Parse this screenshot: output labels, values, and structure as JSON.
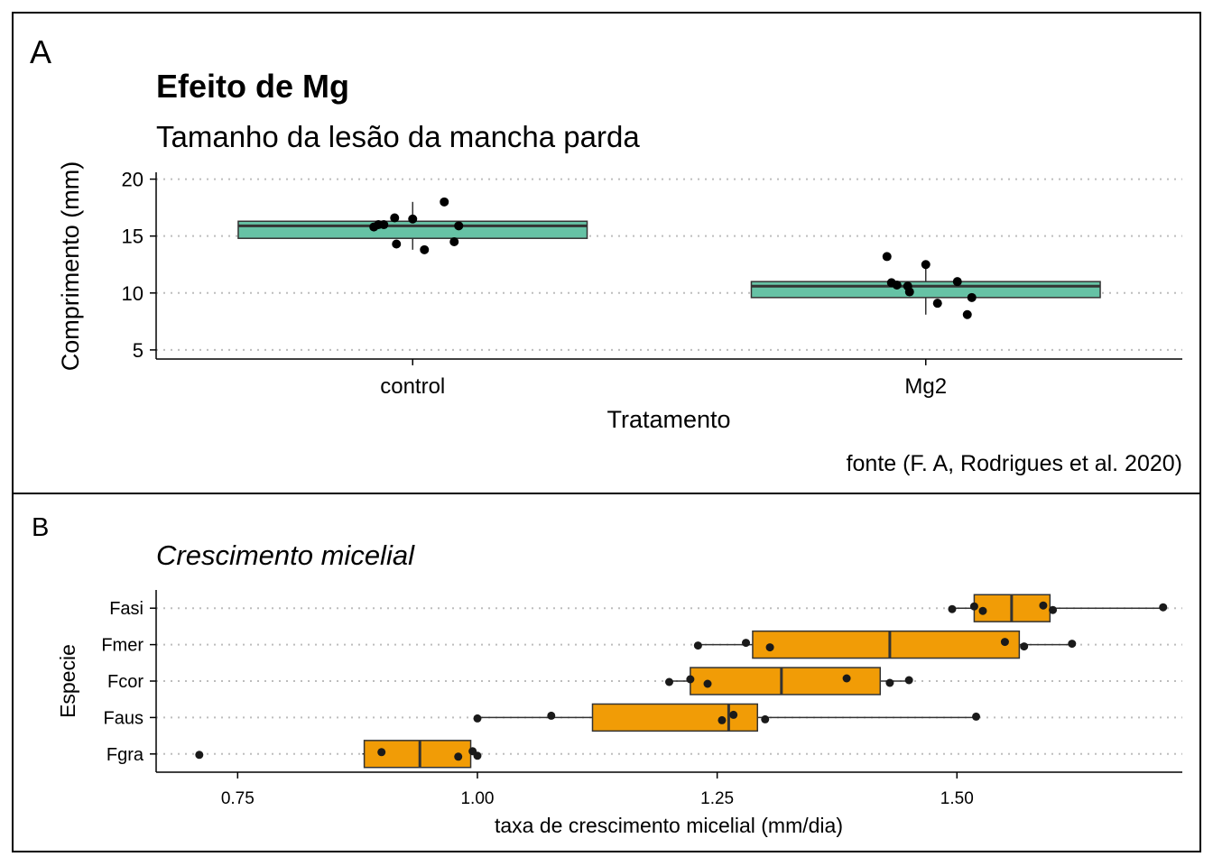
{
  "chart_data": [
    {
      "panel_tag": "A",
      "type": "box",
      "title": "Efeito de Mg",
      "subtitle": "Tamanho da lesão da mancha parda",
      "xlabel": "Tratamento",
      "ylabel": "Comprimento (mm)",
      "caption": "fonte (F. A, Rodrigues et al. 2020)",
      "categories": [
        "control",
        "Mg2"
      ],
      "yticks": [
        "5",
        "10",
        "15",
        "20"
      ],
      "ytick_values": [
        5,
        10,
        15,
        20
      ],
      "ylim": [
        4.2,
        20.6
      ],
      "grid": "horizontal dotted",
      "box_color": "#66c2a5",
      "boxes": [
        {
          "category": "control",
          "q1": 14.8,
          "median": 15.9,
          "q3": 16.3,
          "min": 13.8,
          "max": 18.0
        },
        {
          "category": "Mg2",
          "q1": 9.6,
          "median": 10.6,
          "q3": 11.0,
          "min": 8.1,
          "max": 12.5
        }
      ],
      "points": [
        {
          "category": "control",
          "values": [
            15.8,
            16.0,
            16.0,
            16.6,
            16.5,
            14.3,
            13.8,
            18.0,
            15.9,
            14.5
          ]
        },
        {
          "category": "Mg2",
          "values": [
            13.2,
            10.9,
            10.7,
            10.6,
            12.5,
            10.1,
            9.1,
            11.0,
            9.6,
            8.1
          ]
        }
      ]
    },
    {
      "panel_tag": "B",
      "type": "box",
      "orientation": "horizontal",
      "title": "Crescimento micelial",
      "xlabel": "taxa de crescimento micelial (mm/dia)",
      "ylabel": "Especie",
      "categories": [
        "Fasi",
        "Fmer",
        "Fcor",
        "Faus",
        "Fgra"
      ],
      "xticks": [
        "0.75",
        "1.00",
        "1.25",
        "1.50"
      ],
      "xtick_values": [
        0.75,
        1.0,
        1.25,
        1.5
      ],
      "xlim": [
        0.665,
        1.735
      ],
      "grid": "horizontal dotted",
      "box_color": "#f19c06",
      "boxes": [
        {
          "category": "Fasi",
          "min": 1.495,
          "q1": 1.518,
          "median": 1.557,
          "q3": 1.597,
          "max": 1.715
        },
        {
          "category": "Fmer",
          "min": 1.23,
          "q1": 1.287,
          "median": 1.43,
          "q3": 1.565,
          "max": 1.62
        },
        {
          "category": "Fcor",
          "min": 1.2,
          "q1": 1.222,
          "median": 1.317,
          "q3": 1.42,
          "max": 1.45
        },
        {
          "category": "Faus",
          "min": 1.0,
          "q1": 1.12,
          "median": 1.262,
          "q3": 1.292,
          "max": 1.52
        },
        {
          "category": "Fgra",
          "min": 0.88,
          "q1": 0.882,
          "median": 0.94,
          "q3": 0.993,
          "max": 1.0
        }
      ],
      "points": [
        {
          "category": "Fasi",
          "values": [
            1.495,
            1.518,
            1.527,
            1.59,
            1.6,
            1.715
          ]
        },
        {
          "category": "Fmer",
          "values": [
            1.23,
            1.28,
            1.305,
            1.55,
            1.57,
            1.62
          ]
        },
        {
          "category": "Fcor",
          "values": [
            1.2,
            1.222,
            1.24,
            1.385,
            1.43,
            1.45
          ]
        },
        {
          "category": "Faus",
          "values": [
            1.0,
            1.077,
            1.255,
            1.267,
            1.3,
            1.52
          ]
        },
        {
          "category": "Fgra",
          "values": [
            0.71,
            0.9,
            0.98,
            0.995,
            1.0
          ]
        }
      ]
    }
  ]
}
